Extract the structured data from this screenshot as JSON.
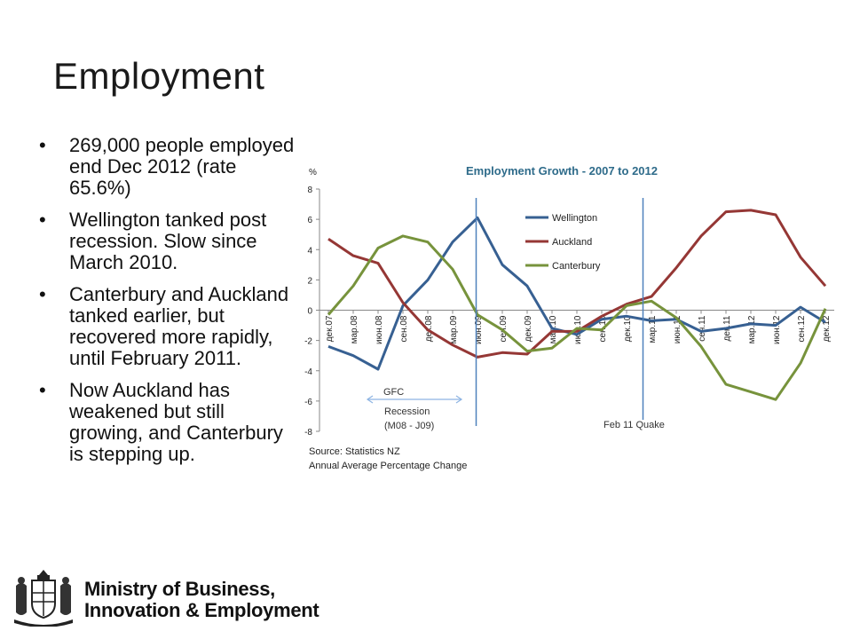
{
  "slide": {
    "title": "Employment",
    "bullets": [
      "269,000 people employed end Dec 2012 (rate 65.6%)",
      "Wellington tanked post recession. Slow since March 2010.",
      "Canterbury and Auckland tanked earlier, but recovered more rapidly, until February 2011.",
      "Now Auckland has weakened but still growing, and Canterbury is stepping up."
    ]
  },
  "footer": {
    "org_line1": "Ministry of Business,",
    "org_line2": "Innovation & Employment"
  },
  "chart_data": {
    "type": "line",
    "title": "Employment Growth - 2007 to 2012",
    "ylabel": "%",
    "xlabel": "",
    "ylim": [
      -8,
      8
    ],
    "yticks": [
      8,
      6,
      4,
      2,
      0,
      -2,
      -4,
      -6,
      -8
    ],
    "categories": [
      "дек.07",
      "мар.08",
      "июн.08",
      "сен.08",
      "дек.08",
      "мар.09",
      "июн.09",
      "сен.09",
      "дек.09",
      "мар.10",
      "июн.10",
      "сен.10",
      "дек.10",
      "мар.11",
      "июн.11",
      "сен.11",
      "дек.11",
      "мар.12",
      "июн.12",
      "сен.12",
      "дек.12"
    ],
    "series": [
      {
        "name": "Wellington",
        "color": "#376092",
        "values": [
          -2.4,
          -3.0,
          -3.9,
          0.3,
          2.0,
          4.5,
          6.1,
          3.0,
          1.6,
          -1.2,
          -1.6,
          -0.6,
          -0.4,
          -0.7,
          -0.6,
          -1.4,
          -1.2,
          -0.9,
          -1.0,
          0.2,
          -0.8
        ]
      },
      {
        "name": "Auckland",
        "color": "#953735",
        "values": [
          4.7,
          3.6,
          3.1,
          0.5,
          -1.3,
          -2.3,
          -3.1,
          -2.8,
          -2.9,
          -1.4,
          -1.4,
          -0.4,
          0.4,
          0.9,
          2.8,
          4.9,
          6.5,
          6.6,
          6.3,
          3.5,
          1.6
        ]
      },
      {
        "name": "Canterbury",
        "color": "#77933C",
        "values": [
          -0.3,
          1.6,
          4.1,
          4.9,
          4.5,
          2.7,
          -0.3,
          -1.3,
          -2.7,
          -2.5,
          -1.2,
          -1.3,
          0.3,
          0.6,
          -0.5,
          -2.4,
          -4.9,
          -5.4,
          -5.9,
          -3.5,
          0.1
        ]
      }
    ],
    "legend_position": "upper-middle",
    "grid": false,
    "annotations": {
      "gfc_label": "GFC",
      "recession_line1": "Recession",
      "recession_line2": "(M08 - J09)",
      "quake_label": "Feb 11 Quake",
      "source_line1": "Source: Statistics NZ",
      "source_line2": "Annual Average Percentage Change"
    }
  }
}
